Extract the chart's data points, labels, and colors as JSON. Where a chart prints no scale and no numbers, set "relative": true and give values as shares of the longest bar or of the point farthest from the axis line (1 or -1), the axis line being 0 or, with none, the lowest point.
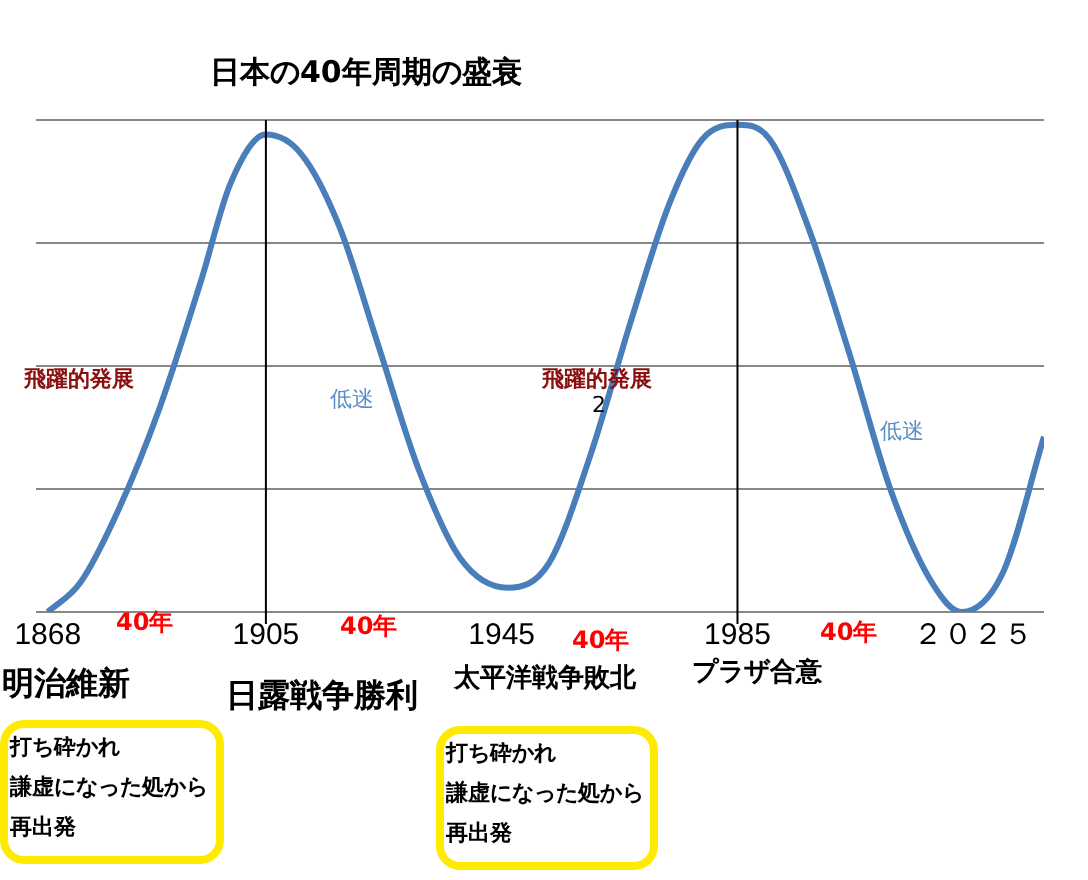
{
  "chart_data": {
    "type": "line",
    "title": "日本の40年周期の盛衰",
    "relative": true,
    "x": [
      1868,
      1873.5,
      1880,
      1887,
      1894,
      1899,
      1905,
      1911,
      1917.5,
      1924,
      1931,
      1938,
      1946,
      1953,
      1960,
      1967,
      1973.5,
      1979,
      1985,
      1990.5,
      1997,
      2004,
      2011,
      2018,
      2023,
      2030,
      2037
    ],
    "series": [
      {
        "color": "#4a7ebb",
        "values": [
          0,
          0.06,
          0.21,
          0.42,
          0.68,
          0.88,
          0.98,
          0.94,
          0.79,
          0.55,
          0.29,
          0.11,
          0.05,
          0.1,
          0.32,
          0.6,
          0.84,
          0.97,
          1,
          0.97,
          0.79,
          0.53,
          0.25,
          0.06,
          0,
          0.08,
          0.36
        ]
      }
    ],
    "xlim": [
      1866,
      2037
    ],
    "xticks": [
      1868,
      1905,
      1945,
      1985,
      {
        "value": 2025,
        "label": "２０２５"
      }
    ],
    "ref_lines": [
      {
        "axis": "x",
        "value": 1905
      },
      {
        "axis": "x",
        "value": 1985
      }
    ],
    "grid": "y",
    "legend": false,
    "marker": "none",
    "line_style": "solid",
    "annotations": [
      "飛躍的発展",
      "低迷",
      "飛躍的発展",
      "2",
      "低迷",
      "40年",
      "40年",
      "40年",
      "40年",
      "明治維新",
      "日露戦争勝利",
      "太平洋戦争敗北",
      "プラザ合意",
      "打ち砕かれ",
      "謙虚になった処から",
      "再出発",
      "打ち砕かれ",
      "謙虚になった処から",
      "再出発"
    ]
  }
}
